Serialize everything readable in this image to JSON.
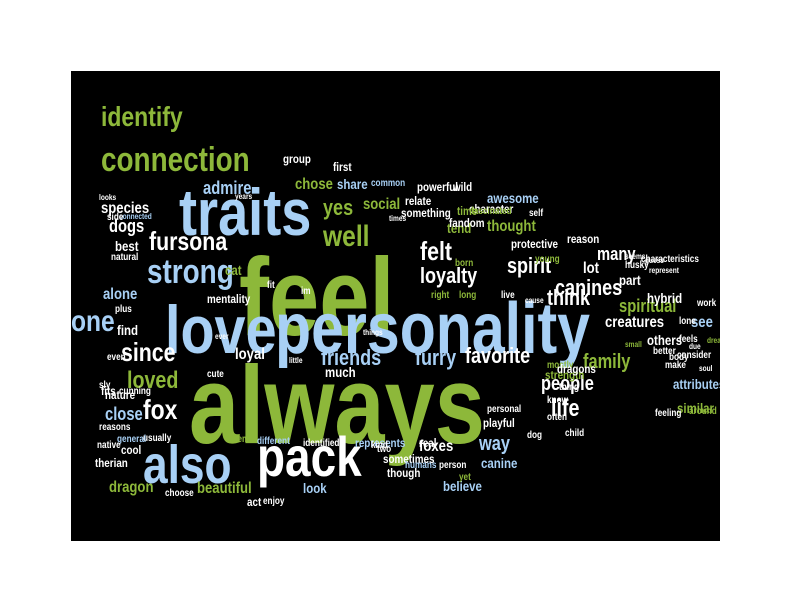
{
  "colors": {
    "background": "#000000",
    "green": "#8db83a",
    "blue": "#a8d0f5",
    "white": "#ffffff"
  },
  "words": [
    {
      "text": "always",
      "c": "green"
    },
    {
      "text": "feel",
      "c": "green"
    },
    {
      "text": "personality",
      "c": "blue"
    },
    {
      "text": "love",
      "c": "blue"
    },
    {
      "text": "traits",
      "c": "blue"
    },
    {
      "text": "pack",
      "c": "white"
    },
    {
      "text": "also",
      "c": "blue"
    },
    {
      "text": "connection",
      "c": "green"
    },
    {
      "text": "identify",
      "c": "green"
    },
    {
      "text": "strong",
      "c": "blue"
    },
    {
      "text": "one",
      "c": "blue"
    },
    {
      "text": "fursona",
      "c": "white"
    },
    {
      "text": "since",
      "c": "white"
    },
    {
      "text": "well",
      "c": "green"
    },
    {
      "text": "felt",
      "c": "white"
    },
    {
      "text": "spirit",
      "c": "white"
    },
    {
      "text": "loyalty",
      "c": "white"
    },
    {
      "text": "think",
      "c": "white"
    },
    {
      "text": "canines",
      "c": "white"
    },
    {
      "text": "fox",
      "c": "white"
    },
    {
      "text": "loved",
      "c": "green"
    },
    {
      "text": "life",
      "c": "white"
    },
    {
      "text": "favorite",
      "c": "white"
    },
    {
      "text": "friends",
      "c": "blue"
    },
    {
      "text": "furry",
      "c": "blue"
    },
    {
      "text": "family",
      "c": "green"
    },
    {
      "text": "people",
      "c": "white"
    },
    {
      "text": "way",
      "c": "blue"
    },
    {
      "text": "yes",
      "c": "green"
    },
    {
      "text": "admire",
      "c": "blue"
    },
    {
      "text": "social",
      "c": "green"
    },
    {
      "text": "dogs",
      "c": "white"
    },
    {
      "text": "many",
      "c": "white"
    },
    {
      "text": "spiritual",
      "c": "green"
    },
    {
      "text": "creatures",
      "c": "white"
    },
    {
      "text": "see",
      "c": "blue"
    },
    {
      "text": "close",
      "c": "blue"
    },
    {
      "text": "loyal",
      "c": "white"
    },
    {
      "text": "foxes",
      "c": "white"
    },
    {
      "text": "dragon",
      "c": "green"
    },
    {
      "text": "beautiful",
      "c": "green"
    },
    {
      "text": "chose",
      "c": "green"
    },
    {
      "text": "share",
      "c": "blue"
    },
    {
      "text": "species",
      "c": "white"
    },
    {
      "text": "lot",
      "c": "white"
    },
    {
      "text": "part",
      "c": "white"
    },
    {
      "text": "others",
      "c": "white"
    },
    {
      "text": "alone",
      "c": "blue"
    },
    {
      "text": "find",
      "c": "white"
    },
    {
      "text": "much",
      "c": "white"
    },
    {
      "text": "canine",
      "c": "blue"
    },
    {
      "text": "look",
      "c": "blue"
    },
    {
      "text": "believe",
      "c": "blue"
    },
    {
      "text": "nature",
      "c": "white"
    },
    {
      "text": "hybrid",
      "c": "white"
    },
    {
      "text": "similar",
      "c": "green"
    },
    {
      "text": "attributes",
      "c": "blue"
    },
    {
      "text": "thought",
      "c": "green"
    },
    {
      "text": "tend",
      "c": "green"
    },
    {
      "text": "protective",
      "c": "white"
    },
    {
      "text": "awesome",
      "c": "blue"
    },
    {
      "text": "reason",
      "c": "white"
    },
    {
      "text": "group",
      "c": "white"
    },
    {
      "text": "first",
      "c": "white"
    },
    {
      "text": "powerful",
      "c": "white"
    },
    {
      "text": "wild",
      "c": "white"
    },
    {
      "text": "something",
      "c": "white"
    },
    {
      "text": "character",
      "c": "white"
    },
    {
      "text": "fandom",
      "c": "white"
    },
    {
      "text": "relate",
      "c": "white"
    },
    {
      "text": "time",
      "c": "green"
    },
    {
      "text": "common",
      "c": "blue"
    },
    {
      "text": "fascinated",
      "c": "green"
    },
    {
      "text": "best",
      "c": "white"
    },
    {
      "text": "natural",
      "c": "white"
    },
    {
      "text": "cat",
      "c": "green"
    },
    {
      "text": "mentality",
      "c": "white"
    },
    {
      "text": "fit",
      "c": "white"
    },
    {
      "text": "im",
      "c": "white"
    },
    {
      "text": "act",
      "c": "white"
    },
    {
      "text": "enjoy",
      "c": "white"
    },
    {
      "text": "choose",
      "c": "white"
    },
    {
      "text": "cool",
      "c": "white"
    },
    {
      "text": "therian",
      "c": "white"
    },
    {
      "text": "cute",
      "c": "white"
    },
    {
      "text": "fits",
      "c": "white"
    },
    {
      "text": "sly",
      "c": "white"
    },
    {
      "text": "reasons",
      "c": "white"
    },
    {
      "text": "usually",
      "c": "white"
    },
    {
      "text": "general",
      "c": "blue"
    },
    {
      "text": "native",
      "c": "white"
    },
    {
      "text": "totem",
      "c": "green"
    },
    {
      "text": "different",
      "c": "blue"
    },
    {
      "text": "identified",
      "c": "white"
    },
    {
      "text": "represents",
      "c": "blue"
    },
    {
      "text": "real",
      "c": "white"
    },
    {
      "text": "sometimes",
      "c": "white"
    },
    {
      "text": "though",
      "c": "white"
    },
    {
      "text": "humans",
      "c": "blue"
    },
    {
      "text": "person",
      "c": "white"
    },
    {
      "text": "yet",
      "c": "green"
    },
    {
      "text": "kind",
      "c": "white"
    },
    {
      "text": "two",
      "c": "white"
    },
    {
      "text": "playful",
      "c": "white"
    },
    {
      "text": "dog",
      "c": "white"
    },
    {
      "text": "child",
      "c": "white"
    },
    {
      "text": "personal",
      "c": "white"
    },
    {
      "text": "know",
      "c": "white"
    },
    {
      "text": "often",
      "c": "white"
    },
    {
      "text": "mostly",
      "c": "green"
    },
    {
      "text": "strength",
      "c": "green"
    },
    {
      "text": "dragons",
      "c": "white"
    },
    {
      "text": "thing",
      "c": "white"
    },
    {
      "text": "feeling",
      "c": "white"
    },
    {
      "text": "husky",
      "c": "white"
    },
    {
      "text": "represent",
      "c": "white"
    },
    {
      "text": "lone",
      "c": "white"
    },
    {
      "text": "work",
      "c": "white"
    },
    {
      "text": "feels",
      "c": "white"
    },
    {
      "text": "consider",
      "c": "white"
    },
    {
      "text": "better",
      "c": "white"
    },
    {
      "text": "make",
      "c": "white"
    },
    {
      "text": "body",
      "c": "white"
    },
    {
      "text": "soul",
      "c": "white"
    },
    {
      "text": "due",
      "c": "white"
    },
    {
      "text": "dreams",
      "c": "green"
    },
    {
      "text": "around",
      "c": "green"
    },
    {
      "text": "right",
      "c": "green"
    },
    {
      "text": "long",
      "c": "green"
    },
    {
      "text": "live",
      "c": "white"
    },
    {
      "text": "born",
      "c": "green"
    },
    {
      "text": "young",
      "c": "green"
    },
    {
      "text": "self",
      "c": "white"
    },
    {
      "text": "characteristics",
      "c": "white"
    },
    {
      "text": "seems",
      "c": "white"
    },
    {
      "text": "guess",
      "c": "white"
    },
    {
      "text": "cause",
      "c": "white"
    },
    {
      "text": "small",
      "c": "green"
    },
    {
      "text": "times",
      "c": "white"
    },
    {
      "text": "connected",
      "c": "blue"
    },
    {
      "text": "side",
      "c": "white"
    },
    {
      "text": "looks",
      "c": "white"
    },
    {
      "text": "years",
      "c": "white"
    },
    {
      "text": "plus",
      "c": "white"
    },
    {
      "text": "ever",
      "c": "white"
    },
    {
      "text": "even",
      "c": "white"
    },
    {
      "text": "cunning",
      "c": "white"
    },
    {
      "text": "little",
      "c": "white"
    },
    {
      "text": "things",
      "c": "white"
    },
    {
      "text": "get",
      "c": "white"
    }
  ]
}
